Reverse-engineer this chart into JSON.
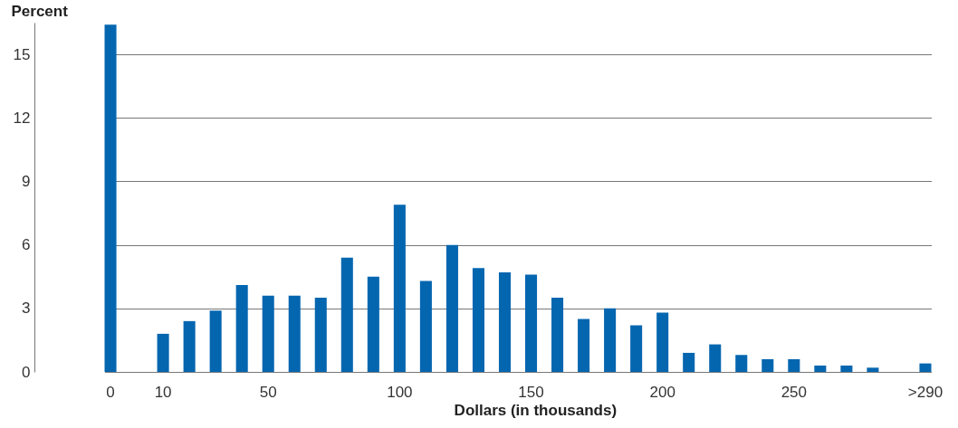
{
  "chart_data": {
    "type": "bar",
    "xlabel": "Dollars (in thousands)",
    "ylabel": "Percent",
    "categories": [
      "0",
      null,
      "10",
      null,
      null,
      null,
      "50",
      null,
      null,
      null,
      null,
      "100",
      null,
      null,
      null,
      null,
      "150",
      null,
      null,
      null,
      null,
      "200",
      null,
      null,
      null,
      null,
      "250",
      null,
      null,
      null,
      null,
      ">290"
    ],
    "values": [
      16.4,
      null,
      1.8,
      2.4,
      2.9,
      4.1,
      3.6,
      3.6,
      3.5,
      5.4,
      4.5,
      7.9,
      4.3,
      6.0,
      4.9,
      4.7,
      4.6,
      3.5,
      2.5,
      3.0,
      2.2,
      2.8,
      0.9,
      1.3,
      0.8,
      0.6,
      0.6,
      0.3,
      0.3,
      0.2,
      null,
      0.4
    ],
    "color": "#0566b0",
    "ylim": [
      0,
      16.5
    ],
    "yticks": [
      0,
      3,
      6,
      9,
      12,
      15
    ],
    "grid": "y"
  }
}
